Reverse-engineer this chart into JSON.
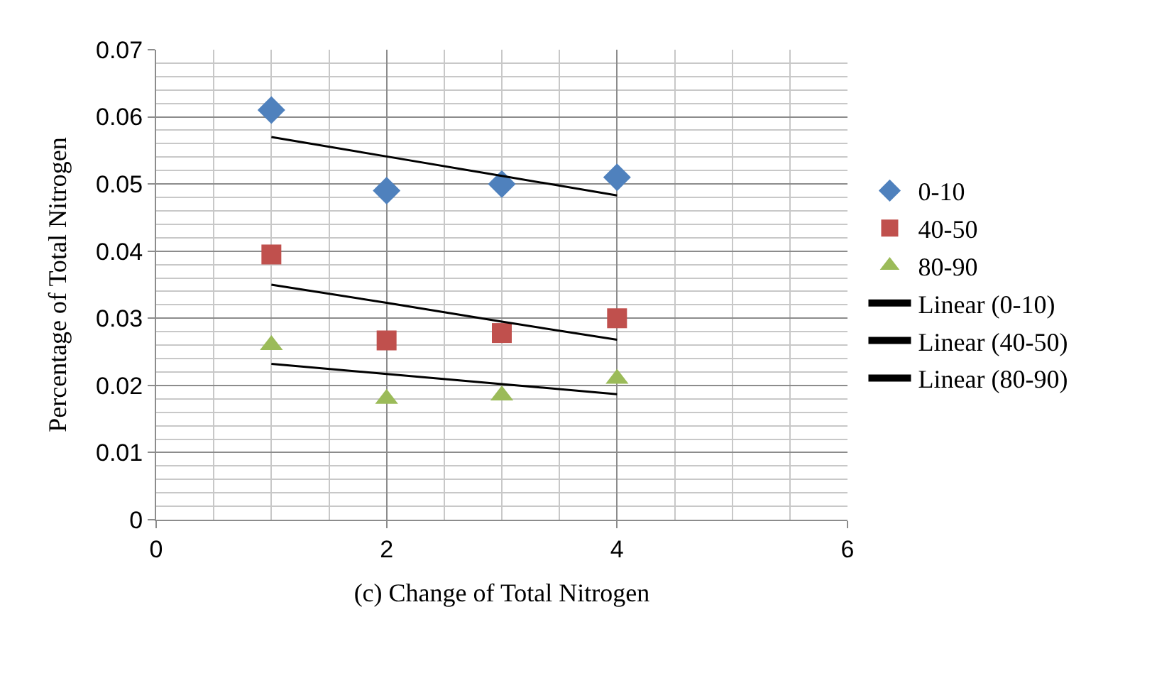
{
  "chart_data": {
    "type": "scatter",
    "xlabel": "(c) Change of Total Nitrogen",
    "ylabel": "Percentage of Total Nitrogen",
    "x": [
      1,
      2,
      3,
      4
    ],
    "series": [
      {
        "name": "0-10",
        "color": "#4f81bd",
        "marker": "diamond",
        "values": [
          0.061,
          0.049,
          0.05,
          0.051
        ]
      },
      {
        "name": "40-50",
        "color": "#c0504d",
        "marker": "square",
        "values": [
          0.0395,
          0.0267,
          0.0278,
          0.03
        ]
      },
      {
        "name": "80-90",
        "color": "#9bbb59",
        "marker": "triangle",
        "values": [
          0.026,
          0.018,
          0.0185,
          0.021
        ]
      },
      {
        "name": "Linear (0-10)",
        "type": "line",
        "color": "#000000",
        "values": [
          0.057,
          0.0541,
          0.0512,
          0.0483
        ]
      },
      {
        "name": "Linear (40-50)",
        "type": "line",
        "color": "#000000",
        "values": [
          0.035,
          0.0323,
          0.0295,
          0.0268
        ]
      },
      {
        "name": "Linear (80-90)",
        "type": "line",
        "color": "#000000",
        "values": [
          0.0232,
          0.0217,
          0.0202,
          0.0187
        ]
      }
    ],
    "xlim": [
      0,
      6
    ],
    "xticks": [
      0,
      2,
      4,
      6
    ],
    "ylim": [
      0,
      0.07
    ],
    "yticks": [
      0,
      0.01,
      0.02,
      0.03,
      0.04,
      0.05,
      0.06,
      0.07
    ],
    "grid": true,
    "legend": "right"
  }
}
